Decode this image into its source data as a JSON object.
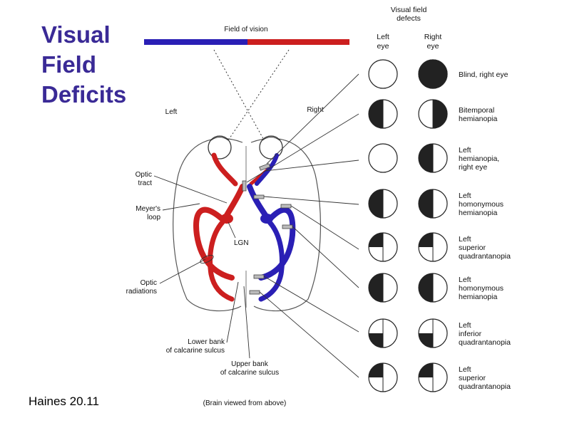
{
  "title_lines": [
    "Visual",
    "Field",
    "Deficits"
  ],
  "credit": "Haines 20.11",
  "field_of_vision": "Field of vision",
  "side_left": "Left",
  "side_right": "Right",
  "caption": "(Brain viewed from above)",
  "defects_header": [
    "Visual field",
    "defects"
  ],
  "eye_headers": {
    "left": [
      "Left",
      "eye"
    ],
    "right": [
      "Right",
      "eye"
    ]
  },
  "labels": {
    "optic_tract": [
      "Optic",
      "tract"
    ],
    "meyers_loop": [
      "Meyer's",
      "loop"
    ],
    "lgn": "LGN",
    "optic_radiations": [
      "Optic",
      "radiations"
    ],
    "lower_bank": [
      "Lower bank",
      "of calcarine sulcus"
    ],
    "upper_bank": [
      "Upper bank",
      "of calcarine sulcus"
    ]
  },
  "colors": {
    "title": "#3a2a96",
    "left_field": "#cc1f1f",
    "right_field": "#2a1fb5",
    "defect": "#222222"
  },
  "defects": [
    {
      "label": [
        "Blind, right eye"
      ],
      "left_eye": "none",
      "right_eye": "full"
    },
    {
      "label": [
        "Bitemporal",
        "hemianopia"
      ],
      "left_eye": "left-half",
      "right_eye": "right-half"
    },
    {
      "label": [
        "Left",
        "hemianopia,",
        "right eye"
      ],
      "left_eye": "none",
      "right_eye": "left-half"
    },
    {
      "label": [
        "Left",
        "homonymous",
        "hemianopia"
      ],
      "left_eye": "left-half",
      "right_eye": "left-half"
    },
    {
      "label": [
        "Left",
        "superior",
        "quadrantanopia"
      ],
      "left_eye": "upper-left",
      "right_eye": "upper-left"
    },
    {
      "label": [
        "Left",
        "homonymous",
        "hemianopia"
      ],
      "left_eye": "left-half",
      "right_eye": "left-half"
    },
    {
      "label": [
        "Left",
        "inferior",
        "quadrantanopia"
      ],
      "left_eye": "lower-left",
      "right_eye": "lower-left"
    },
    {
      "label": [
        "Left",
        "superior",
        "quadrantanopia"
      ],
      "left_eye": "upper-left",
      "right_eye": "upper-left"
    }
  ]
}
